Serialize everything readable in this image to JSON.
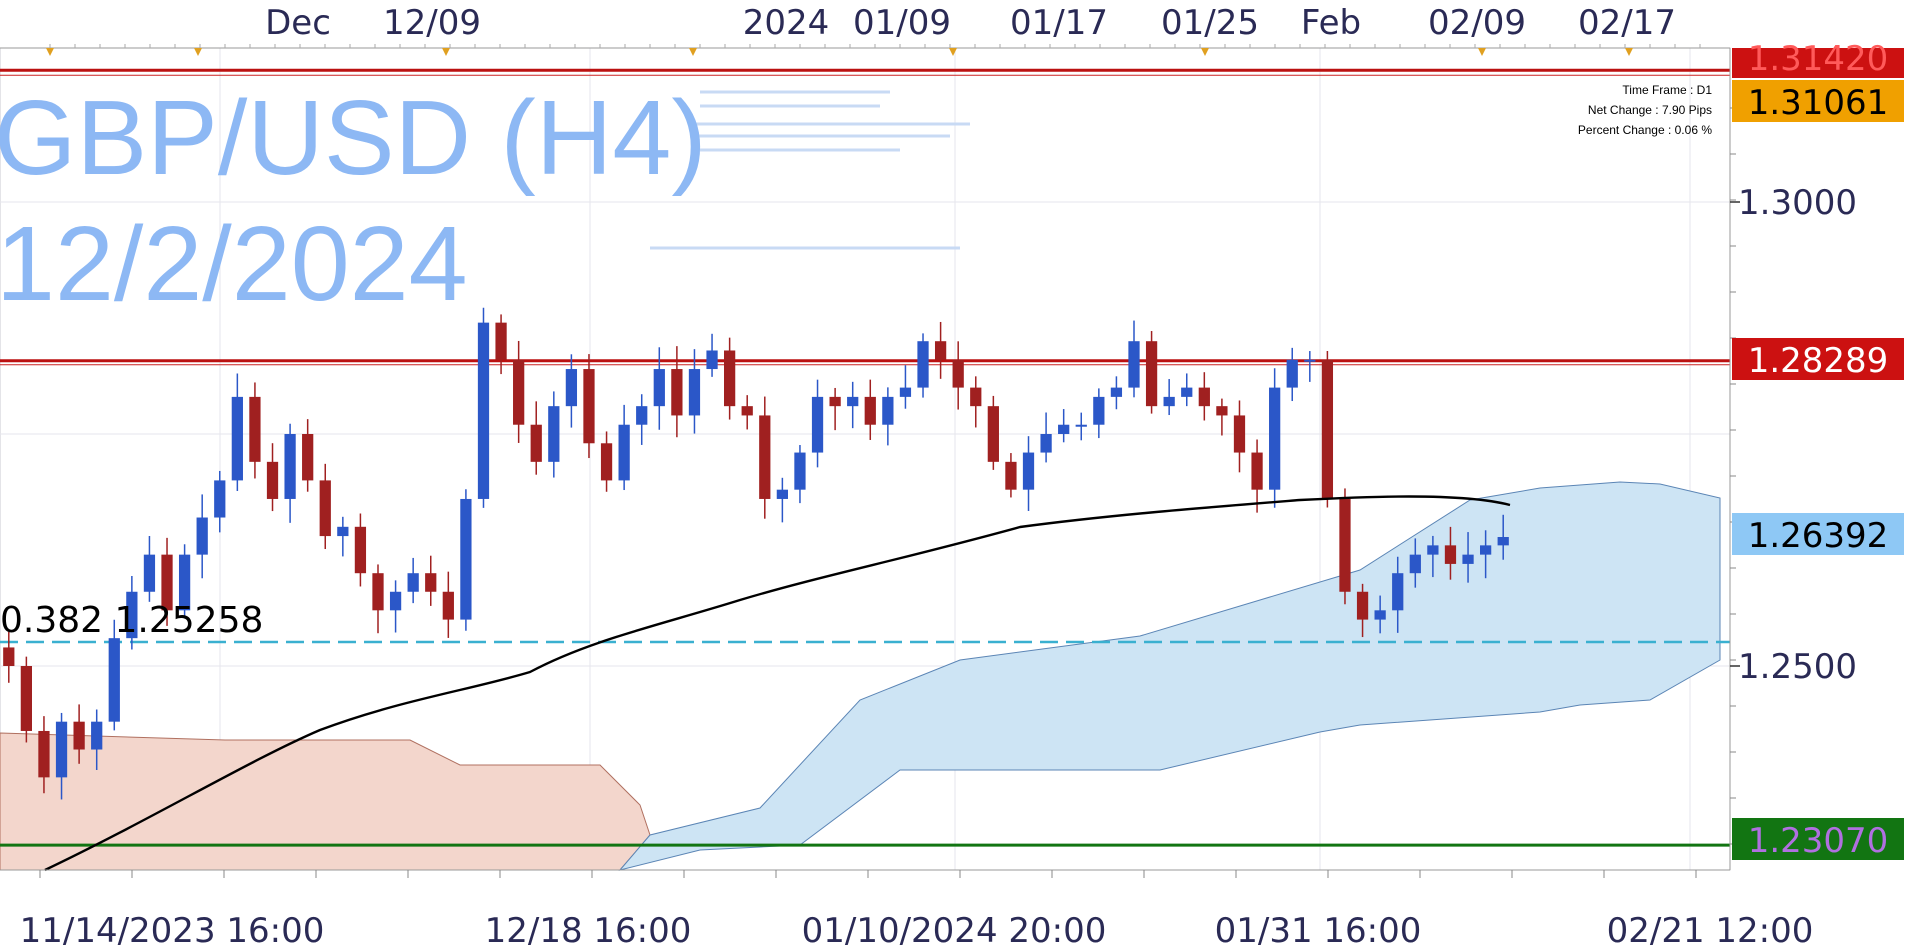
{
  "chart_data": {
    "type": "candlestick",
    "symbol_title": "GBP/USD (H4)",
    "date_title": "12/2/2024",
    "info": {
      "time_frame": "Time Frame : D1",
      "net_change": "Net Change : 7.90 Pips",
      "percent_change": "Percent Change : 0.06 %"
    },
    "top_axis_labels": [
      "Dec",
      "12/09",
      "2024",
      "01/09",
      "01/17",
      "01/25",
      "Feb",
      "02/09",
      "02/17"
    ],
    "bottom_axis_labels": [
      "11/14/2023 16:00",
      "12/18 16:00",
      "01/10/2024 20:00",
      "01/31 16:00",
      "02/21 12:00"
    ],
    "y_axis": {
      "ticks": [
        "1.3000",
        "1.2500"
      ],
      "ylim": [
        1.22,
        1.317
      ]
    },
    "levels": [
      {
        "label": "1.31420",
        "value": 1.3142,
        "color": "#cc1111",
        "text_color": "#ff5a5a"
      },
      {
        "label": "1.31061",
        "value": 1.31061,
        "color": "#f0a000",
        "text_color": "#000000"
      },
      {
        "label": "1.28289",
        "value": 1.28289,
        "color": "#cc1111",
        "text_color": "#ffffff"
      },
      {
        "label": "1.26392",
        "value": 1.26392,
        "color": "#8ec8f5",
        "text_color": "#000000"
      },
      {
        "label": "1.23070",
        "value": 1.2307,
        "color": "#127512",
        "text_color": "#b070e0"
      }
    ],
    "fibonacci": {
      "label": "0.382 1.25258",
      "value": 1.25258,
      "color": "#3ab0d0"
    },
    "price_path": [
      1.25,
      1.243,
      1.238,
      1.244,
      1.241,
      1.244,
      1.253,
      1.258,
      1.262,
      1.256,
      1.262,
      1.266,
      1.27,
      1.279,
      1.272,
      1.268,
      1.275,
      1.27,
      1.264,
      1.265,
      1.26,
      1.256,
      1.258,
      1.26,
      1.258,
      1.255,
      1.268,
      1.287,
      1.283,
      1.276,
      1.272,
      1.278,
      1.282,
      1.274,
      1.27,
      1.276,
      1.278,
      1.282,
      1.277,
      1.282,
      1.284,
      1.278,
      1.277,
      1.268,
      1.269,
      1.273,
      1.279,
      1.278,
      1.279,
      1.276,
      1.279,
      1.28,
      1.285,
      1.283,
      1.28,
      1.278,
      1.272,
      1.269,
      1.273,
      1.275,
      1.276,
      1.276,
      1.279,
      1.28,
      1.285,
      1.278,
      1.279,
      1.28,
      1.278,
      1.277,
      1.273,
      1.269,
      1.28,
      1.283,
      1.283,
      1.268,
      1.258,
      1.255,
      1.256,
      1.26,
      1.262,
      1.263,
      1.261,
      1.262,
      1.263,
      1.2639
    ]
  }
}
